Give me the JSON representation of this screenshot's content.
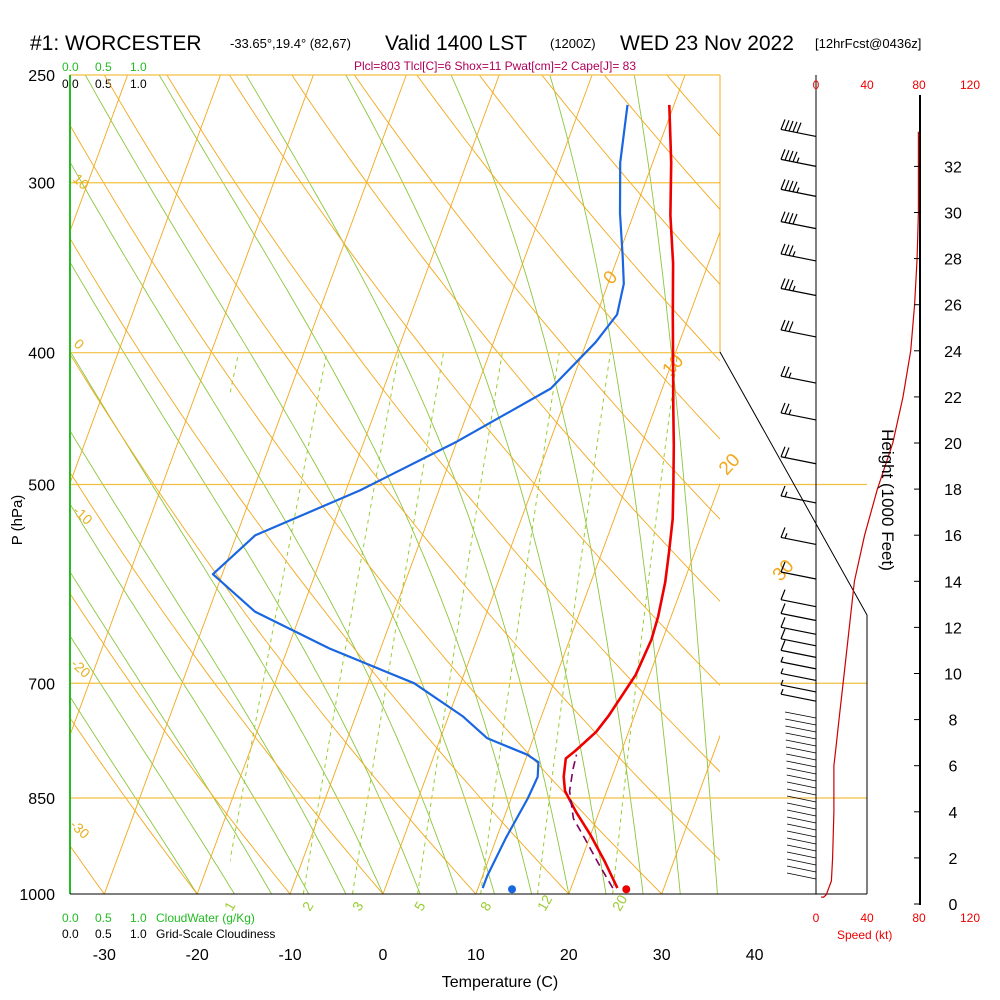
{
  "header": {
    "station": "#1: WORCESTER",
    "coords": "-33.65°,19.4° (82,67)",
    "valid": "Valid 1400 LST",
    "utc": "(1200Z)",
    "date": "WED 23 Nov 2022",
    "forecast": "[12hrFcst@0436z]",
    "params": "Plcl=803 Tlcl[C]=6 Shox=11 Pwat[cm]=2 Cape[J]= 83"
  },
  "cloud_scale": {
    "green_ticks": [
      "0.0",
      "0.5",
      "1.0"
    ],
    "black_ticks": [
      "0.0",
      "0.5",
      "1.0"
    ],
    "cloudwater_label": "CloudWater (g/Kg)",
    "cloudiness_label": "Grid-Scale Cloudiness"
  },
  "speed_scale": {
    "ticks": [
      "0",
      "40",
      "80",
      "120"
    ],
    "label": "Speed (kt)"
  },
  "colors": {
    "temperature": "#ee0000",
    "dewpoint": "#1a66e0",
    "parcel": "#800060",
    "isotherm": "#f2a81d",
    "mixing_ratio": "#9acd32",
    "speed": "#cc0000"
  },
  "chart_data": {
    "type": "line",
    "title": "",
    "xlabel": "Temperature (C)",
    "ylabel": "P (hPa)",
    "y2label": "Height (1000 Feet)",
    "xlim": [
      -35,
      36
    ],
    "ylim": [
      1000,
      250
    ],
    "y_log_scale": true,
    "x_ticks": [
      -30,
      -20,
      -10,
      0,
      10,
      20,
      30,
      40
    ],
    "p_ticks": [
      250,
      300,
      400,
      500,
      700,
      850,
      1000
    ],
    "height_ticks": [
      0,
      2,
      4,
      6,
      8,
      10,
      12,
      14,
      16,
      18,
      20,
      22,
      24,
      26,
      28,
      30,
      32
    ],
    "isotherm_labels": [
      {
        "label": "0",
        "p": 357
      },
      {
        "label": "10",
        "p": 417
      },
      {
        "label": "20",
        "p": 493
      },
      {
        "label": "30",
        "p": 590
      }
    ],
    "dry_adiabat_labels": [
      "10",
      "0",
      "-10",
      "-20",
      "-30"
    ],
    "mixing_ratio_labels": [
      "1",
      "2",
      "3",
      "5",
      "8",
      "12",
      "20"
    ],
    "series": [
      {
        "name": "temperature",
        "points": [
          [
            -0.5,
            263
          ],
          [
            2,
            290
          ],
          [
            4,
            317
          ],
          [
            6.2,
            344
          ],
          [
            8.2,
            375
          ],
          [
            10.2,
            408
          ],
          [
            12,
            440
          ],
          [
            13.5,
            468
          ],
          [
            15,
            500
          ],
          [
            16.3,
            530
          ],
          [
            17.2,
            560
          ],
          [
            18,
            590
          ],
          [
            18.6,
            625
          ],
          [
            18.8,
            650
          ],
          [
            18.5,
            690
          ],
          [
            17.2,
            740
          ],
          [
            16.5,
            760
          ],
          [
            15,
            785
          ],
          [
            14.3,
            795
          ],
          [
            14.8,
            820
          ],
          [
            15.5,
            840
          ],
          [
            17.5,
            870
          ],
          [
            20,
            905
          ],
          [
            22.5,
            945
          ],
          [
            25,
            990
          ]
        ]
      },
      {
        "name": "dewpoint",
        "points": [
          [
            -5,
            263
          ],
          [
            -3.5,
            290
          ],
          [
            -1.5,
            316
          ],
          [
            0.5,
            340
          ],
          [
            1.7,
            356
          ],
          [
            2.2,
            375
          ],
          [
            1,
            393
          ],
          [
            -2,
            425
          ],
          [
            -10,
            465
          ],
          [
            -18.5,
            505
          ],
          [
            -28,
            545
          ],
          [
            -31,
            582
          ],
          [
            -25,
            620
          ],
          [
            -15.5,
            660
          ],
          [
            -5,
            700
          ],
          [
            1.5,
            740
          ],
          [
            5,
            768
          ],
          [
            10,
            790
          ],
          [
            11.5,
            800
          ],
          [
            12,
            820
          ],
          [
            11.8,
            850
          ],
          [
            11,
            910
          ],
          [
            10.5,
            970
          ],
          [
            10.5,
            990
          ]
        ]
      },
      {
        "name": "parcel",
        "points": [
          [
            24.5,
            990
          ],
          [
            22,
            950
          ],
          [
            19.5,
            910
          ],
          [
            17.5,
            880
          ],
          [
            16,
            840
          ],
          [
            15.5,
            810
          ],
          [
            15.3,
            790
          ]
        ]
      }
    ],
    "surface_markers": [
      {
        "name": "surface temperature",
        "t": 26,
        "p": 992
      },
      {
        "name": "surface dewpoint",
        "t": 13.7,
        "p": 992
      }
    ],
    "wind_barbs": {
      "heights_kft": [
        33.3,
        32,
        30.7,
        29.3,
        27.9,
        26.4,
        24.6,
        22.6,
        21,
        19.1,
        17.4,
        15.6,
        14.1,
        12.9,
        12.3,
        11.7,
        11.2,
        10.7,
        10.2,
        9.7,
        9.2,
        8.8
      ],
      "speeds_kt": [
        50,
        45,
        45,
        40,
        35,
        35,
        30,
        28,
        25,
        20,
        18,
        15,
        12,
        12,
        12,
        10,
        10,
        10,
        8,
        8,
        8,
        8
      ]
    },
    "wind_speed_profile": [
      [
        4,
        0.3
      ],
      [
        6,
        0.3
      ],
      [
        8,
        0.4
      ],
      [
        12,
        1
      ],
      [
        13,
        2
      ],
      [
        14,
        4
      ],
      [
        14,
        6
      ],
      [
        16,
        7
      ],
      [
        18,
        8
      ],
      [
        22,
        10
      ],
      [
        26,
        12
      ],
      [
        30,
        14
      ],
      [
        38,
        16
      ],
      [
        48,
        18
      ],
      [
        60,
        20
      ],
      [
        68,
        22
      ],
      [
        74,
        24
      ],
      [
        77,
        26
      ],
      [
        79,
        28
      ],
      [
        80,
        30
      ],
      [
        80,
        33.5
      ]
    ]
  }
}
